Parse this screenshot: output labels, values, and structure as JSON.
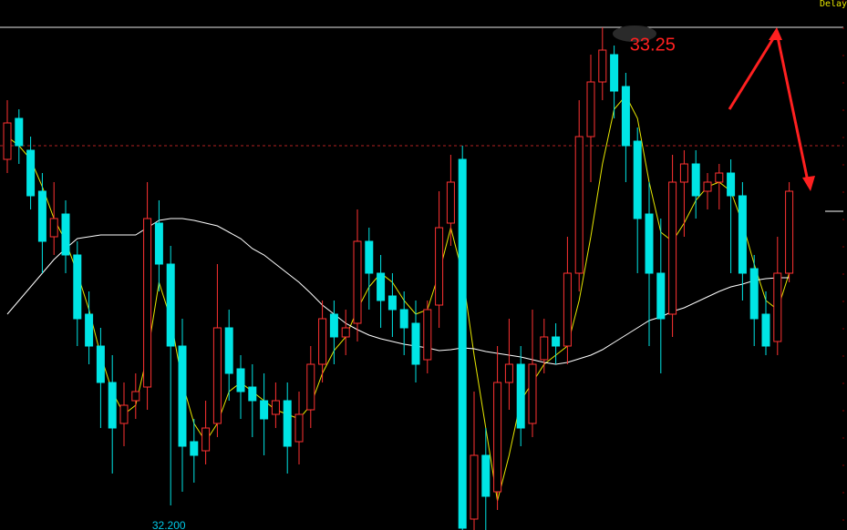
{
  "chart_data": {
    "type": "candlestick",
    "status": "Delay",
    "ylim": [
      32.146,
      33.31
    ],
    "up_color": "#ff3232",
    "down_color": "#00e5e5",
    "open": [
      32.96,
      33.05,
      32.98,
      32.89,
      32.79,
      32.84,
      32.75,
      32.62,
      32.55,
      32.47,
      32.38,
      32.43,
      32.46,
      32.82,
      32.73,
      32.55,
      32.34,
      32.32,
      32.38,
      32.59,
      32.5,
      32.46,
      32.43,
      32.4,
      32.43,
      32.34,
      32.41,
      32.51,
      32.62,
      32.57,
      32.6,
      32.78,
      32.71,
      32.66,
      32.63,
      32.6,
      32.52,
      32.64,
      32.82,
      32.96,
      32.17,
      32.31,
      32.23,
      32.47,
      32.51,
      32.38,
      32.52,
      32.57,
      32.55,
      32.71,
      33.01,
      33.13,
      33.19,
      33.12,
      33.0,
      32.84,
      32.71,
      32.62,
      32.91,
      32.95,
      32.89,
      32.91,
      32.93,
      32.88,
      32.72,
      32.62,
      32.56,
      32.71
    ],
    "high": [
      33.09,
      33.07,
      33.01,
      32.93,
      32.91,
      32.87,
      32.78,
      32.67,
      32.59,
      32.53,
      32.47,
      32.49,
      32.91,
      32.87,
      32.77,
      32.61,
      32.39,
      32.43,
      32.73,
      32.63,
      32.53,
      32.51,
      32.49,
      32.47,
      32.47,
      32.45,
      32.55,
      32.65,
      32.65,
      32.63,
      32.85,
      32.81,
      32.75,
      32.71,
      32.67,
      32.65,
      32.65,
      32.89,
      32.97,
      32.99,
      32.45,
      32.37,
      32.55,
      32.61,
      32.55,
      32.63,
      32.61,
      32.6,
      32.79,
      33.09,
      33.19,
      33.25,
      33.21,
      33.15,
      33.03,
      32.91,
      32.83,
      32.97,
      32.98,
      32.98,
      32.93,
      32.95,
      32.96,
      32.91,
      32.75,
      32.67,
      32.79,
      32.91
    ],
    "low": [
      32.93,
      32.95,
      32.85,
      32.71,
      32.75,
      32.71,
      32.55,
      32.51,
      32.37,
      32.27,
      32.33,
      32.39,
      32.41,
      32.67,
      32.2,
      32.23,
      32.25,
      32.29,
      32.35,
      32.43,
      32.39,
      32.35,
      32.31,
      32.37,
      32.27,
      32.29,
      32.37,
      32.47,
      32.51,
      32.53,
      32.56,
      32.63,
      32.59,
      32.57,
      32.53,
      32.47,
      32.49,
      32.59,
      32.77,
      32.146,
      32.146,
      32.146,
      32.19,
      32.41,
      32.33,
      32.35,
      32.49,
      32.51,
      32.51,
      32.67,
      32.91,
      33.09,
      33.05,
      32.91,
      32.71,
      32.55,
      32.49,
      32.57,
      32.79,
      32.83,
      32.85,
      32.85,
      32.71,
      32.65,
      32.55,
      32.53,
      32.53,
      32.69
    ],
    "close": [
      33.04,
      32.99,
      32.88,
      32.78,
      32.83,
      32.75,
      32.61,
      32.55,
      32.47,
      32.37,
      32.42,
      32.45,
      32.83,
      32.73,
      32.55,
      32.33,
      32.31,
      32.37,
      32.59,
      32.49,
      32.45,
      32.43,
      32.39,
      32.43,
      32.33,
      32.4,
      32.51,
      32.61,
      32.57,
      32.59,
      32.78,
      32.71,
      32.65,
      32.63,
      32.59,
      32.51,
      32.63,
      32.81,
      32.91,
      32.15,
      32.31,
      32.22,
      32.47,
      32.51,
      32.37,
      32.51,
      32.57,
      32.55,
      32.71,
      33.01,
      33.13,
      33.2,
      33.11,
      32.99,
      32.83,
      32.71,
      32.61,
      32.91,
      32.95,
      32.88,
      32.91,
      32.93,
      32.88,
      32.71,
      32.61,
      32.55,
      32.71,
      32.89
    ],
    "ma_series": [
      {
        "color": "#e6e600",
        "values": [
          33.01,
          32.99,
          32.96,
          32.9,
          32.83,
          32.78,
          32.71,
          32.63,
          32.53,
          32.45,
          32.4,
          32.42,
          32.53,
          32.69,
          32.61,
          32.47,
          32.38,
          32.34,
          32.38,
          32.45,
          32.47,
          32.45,
          32.43,
          32.41,
          32.4,
          32.39,
          32.42,
          32.49,
          32.54,
          32.57,
          32.63,
          32.68,
          32.71,
          32.69,
          32.65,
          32.62,
          32.63,
          32.71,
          32.81,
          32.71,
          32.53,
          32.37,
          32.21,
          32.31,
          32.43,
          32.47,
          32.51,
          32.53,
          32.55,
          32.65,
          32.79,
          32.95,
          33.07,
          33.1,
          33.05,
          32.91,
          32.8,
          32.78,
          32.82,
          32.87,
          32.9,
          32.91,
          32.89,
          32.82,
          32.73,
          32.65,
          32.63,
          32.71
        ]
      },
      {
        "color": "#ffffff",
        "values": [
          32.62,
          32.65,
          32.68,
          32.71,
          32.74,
          32.764,
          32.786,
          32.79,
          32.794,
          32.794,
          32.794,
          32.794,
          32.81,
          32.826,
          32.83,
          32.83,
          32.826,
          32.82,
          32.814,
          32.8,
          32.786,
          32.764,
          32.75,
          32.73,
          32.71,
          32.69,
          32.666,
          32.64,
          32.62,
          32.6,
          32.586,
          32.574,
          32.566,
          32.56,
          32.554,
          32.55,
          32.546,
          32.54,
          32.542,
          32.546,
          32.544,
          32.538,
          32.534,
          32.53,
          32.526,
          32.52,
          32.514,
          32.51,
          32.514,
          32.522,
          32.53,
          32.542,
          32.558,
          32.574,
          32.59,
          32.606,
          32.614,
          32.626,
          32.634,
          32.646,
          32.658,
          32.67,
          32.68,
          32.686,
          32.694,
          32.698,
          32.7,
          32.7
        ]
      }
    ],
    "reference_lines": [
      {
        "value": 33.25,
        "color": "#e8e8e8",
        "style": "solid"
      },
      {
        "value": 32.99,
        "color": "#b22222",
        "style": "dashed"
      }
    ],
    "annotations": [
      {
        "text": "33.25",
        "value": 33.25,
        "index": 51,
        "color": "#ff2020",
        "size": 20
      },
      {
        "text": "32.200",
        "value": 32.2,
        "index": 14,
        "color": "#00c8e6",
        "size": 12
      }
    ]
  }
}
